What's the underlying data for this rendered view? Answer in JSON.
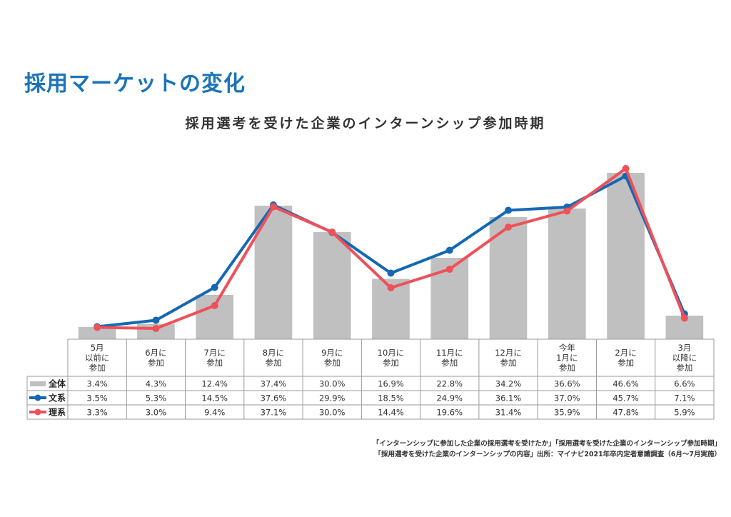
{
  "page_title": "採用マーケットの変化",
  "chart_data": {
    "type": "bar+line",
    "title": "採用選考を受けた企業のインターンシップ参加時期",
    "categories": [
      [
        "5月",
        "以前に",
        "参加"
      ],
      [
        "6月に",
        "参加"
      ],
      [
        "7月に",
        "参加"
      ],
      [
        "8月に",
        "参加"
      ],
      [
        "9月に",
        "参加"
      ],
      [
        "10月に",
        "参加"
      ],
      [
        "11月に",
        "参加"
      ],
      [
        "12月に",
        "参加"
      ],
      [
        "今年",
        "1月に",
        "参加"
      ],
      [
        "2月に",
        "参加"
      ],
      [
        "3月",
        "以降に",
        "参加"
      ]
    ],
    "ylim": [
      0,
      50
    ],
    "series": [
      {
        "name": "全体",
        "kind": "bar",
        "color": "#c0c0c0",
        "values": [
          3.4,
          4.3,
          12.4,
          37.4,
          30.0,
          16.9,
          22.8,
          34.2,
          36.6,
          46.6,
          6.6
        ],
        "labels": [
          "3.4%",
          "4.3%",
          "12.4%",
          "37.4%",
          "30.0%",
          "16.9%",
          "22.8%",
          "34.2%",
          "36.6%",
          "46.6%",
          "6.6%"
        ]
      },
      {
        "name": "文系",
        "kind": "line",
        "color": "#1468b3",
        "values": [
          3.5,
          5.3,
          14.5,
          37.6,
          29.9,
          18.5,
          24.9,
          36.1,
          37.0,
          45.7,
          7.1
        ],
        "labels": [
          "3.5%",
          "5.3%",
          "14.5%",
          "37.6%",
          "29.9%",
          "18.5%",
          "24.9%",
          "36.1%",
          "37.0%",
          "45.7%",
          "7.1%"
        ]
      },
      {
        "name": "理系",
        "kind": "line",
        "color": "#ef5059",
        "values": [
          3.3,
          3.0,
          9.4,
          37.1,
          30.0,
          14.4,
          19.6,
          31.4,
          35.9,
          47.8,
          5.9
        ],
        "labels": [
          "3.3%",
          "3.0%",
          "9.4%",
          "37.1%",
          "30.0%",
          "14.4%",
          "19.6%",
          "31.4%",
          "35.9%",
          "47.8%",
          "5.9%"
        ]
      }
    ],
    "grid": false,
    "legend": "data-table-left"
  },
  "source": {
    "line1": "「インターンシップに参加した企業の採用選考を受けたか」「採用選考を受けた企業のインターンシップ参加時期」",
    "line2": "「採用選考を受けた企業のインターンシップの内容」出所：マイナビ2021年卒内定者意識調査（6月～7月実施）"
  }
}
